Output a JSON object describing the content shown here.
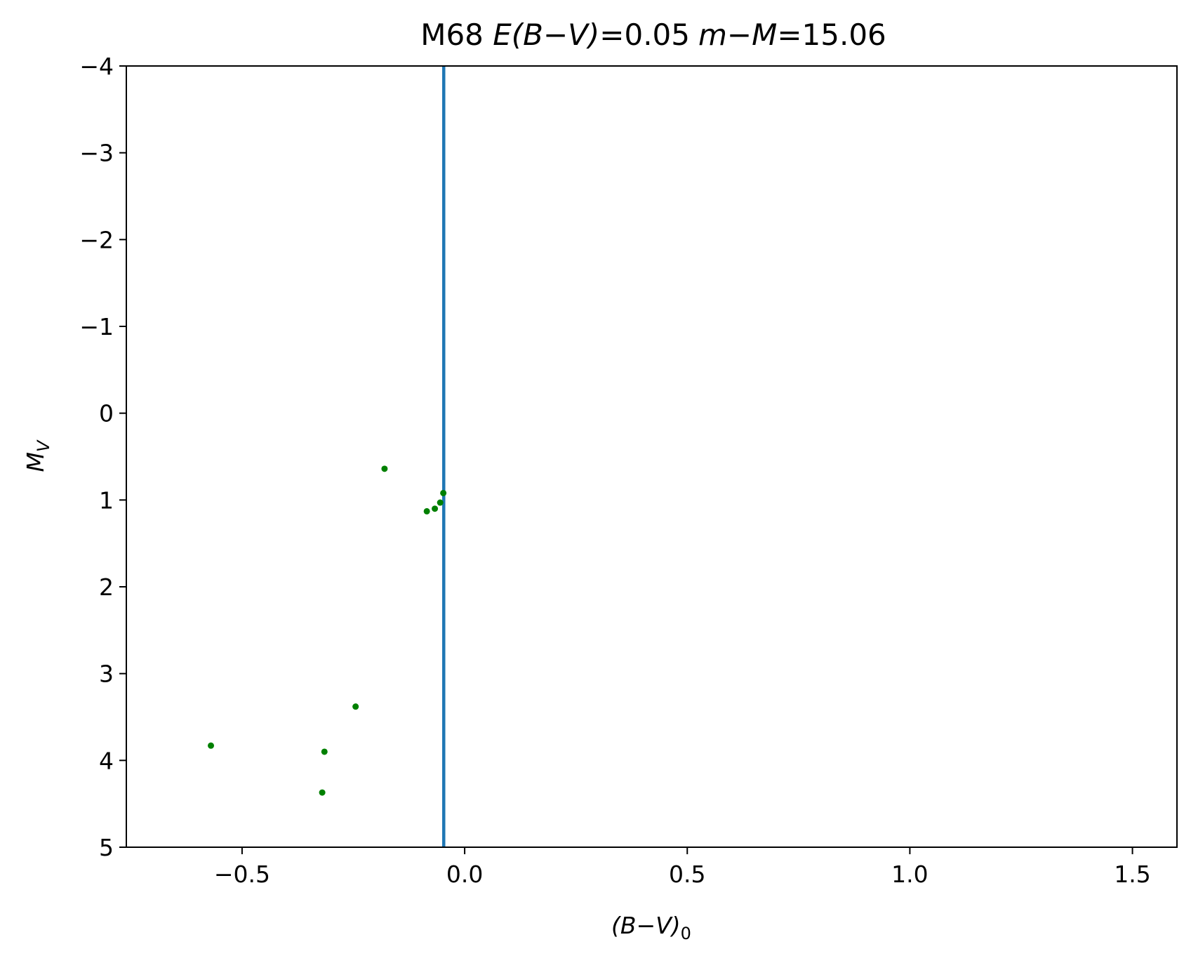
{
  "chart_data": {
    "type": "scatter",
    "title": {
      "prefix": "M68 ",
      "reddening_label": "E(B−V)",
      "reddening_value": "=0.05",
      "modulus_label": "m−M",
      "modulus_value": "=15.06"
    },
    "xlabel": {
      "main": "(B−V)",
      "subscript": "0"
    },
    "ylabel": {
      "main": "M",
      "subscript": "V"
    },
    "xlim": [
      -0.76,
      1.6
    ],
    "ylim": [
      5,
      -4
    ],
    "y_inverted": true,
    "x_ticks": [
      -0.5,
      0.0,
      0.5,
      1.0,
      1.5
    ],
    "x_tick_labels": [
      "−0.5",
      "0.0",
      "0.5",
      "1.0",
      "1.5"
    ],
    "y_ticks": [
      -4,
      -3,
      -2,
      -1,
      0,
      1,
      2,
      3,
      4,
      5
    ],
    "y_tick_labels": [
      "−4",
      "−3",
      "−2",
      "−1",
      "0",
      "1",
      "2",
      "3",
      "4",
      "5"
    ],
    "vertical_line": {
      "x": -0.047,
      "color": "#1f77b4"
    },
    "points": [
      {
        "x": -0.57,
        "y": 3.83
      },
      {
        "x": -0.315,
        "y": 3.9
      },
      {
        "x": -0.32,
        "y": 4.37
      },
      {
        "x": -0.245,
        "y": 3.38
      },
      {
        "x": -0.18,
        "y": 0.64
      },
      {
        "x": -0.085,
        "y": 1.13
      },
      {
        "x": -0.067,
        "y": 1.1
      },
      {
        "x": -0.055,
        "y": 1.03
      },
      {
        "x": -0.048,
        "y": 0.92
      }
    ],
    "point_color": "#008000",
    "grid": false,
    "legend": "none"
  }
}
